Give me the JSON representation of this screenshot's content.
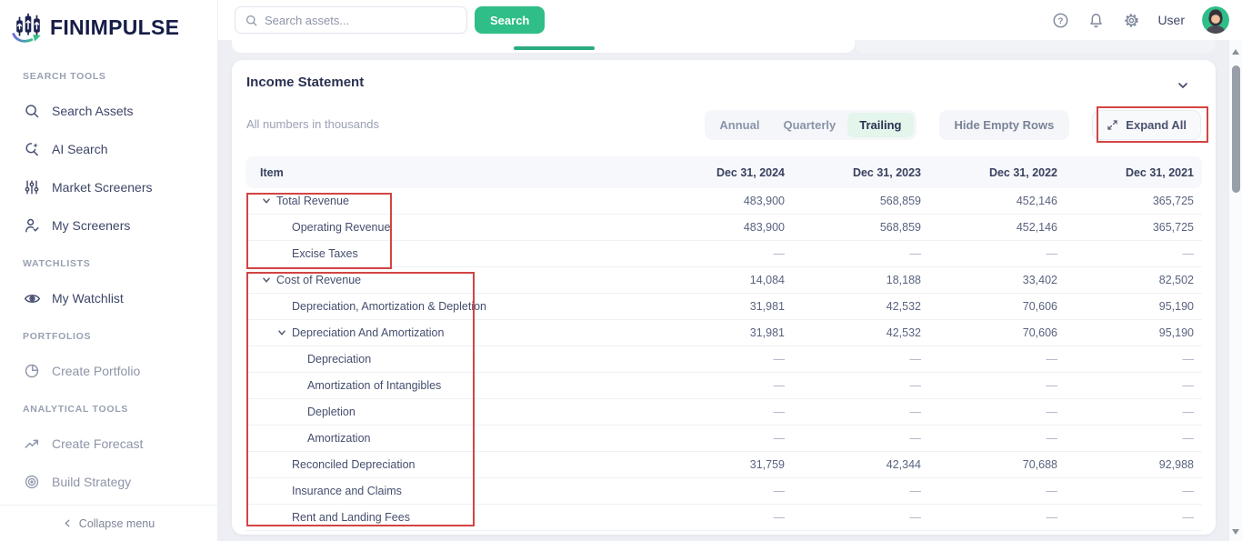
{
  "brand": {
    "name": "FINIMPULSE"
  },
  "colors": {
    "accent_green": "#2fbe87",
    "active_period_bg": "#e4f5ec",
    "tab_underline_green": "#2aab7e",
    "annotation_red": "#d24444",
    "navy": "#161d47"
  },
  "topbar": {
    "search_placeholder": "Search assets...",
    "search_button_label": "Search",
    "user_label": "User"
  },
  "sidebar": {
    "sections": [
      {
        "label": "SEARCH TOOLS",
        "items": [
          {
            "icon": "search",
            "label": "Search Assets",
            "muted": false
          },
          {
            "icon": "ai-search",
            "label": "AI Search",
            "muted": false
          },
          {
            "icon": "sliders",
            "label": "Market Screeners",
            "muted": false
          },
          {
            "icon": "person-check",
            "label": "My Screeners",
            "muted": false
          }
        ]
      },
      {
        "label": "WATCHLISTS",
        "items": [
          {
            "icon": "eye",
            "label": "My Watchlist",
            "muted": false
          }
        ]
      },
      {
        "label": "PORTFOLIOS",
        "items": [
          {
            "icon": "pie",
            "label": "Create Portfolio",
            "muted": true
          }
        ]
      },
      {
        "label": "ANALYTICAL TOOLS",
        "items": [
          {
            "icon": "trend",
            "label": "Create Forecast",
            "muted": true
          },
          {
            "icon": "target",
            "label": "Build Strategy",
            "muted": true
          }
        ]
      }
    ],
    "collapse_label": "Collapse menu"
  },
  "panel": {
    "title": "Income Statement",
    "subtitle": "All numbers in thousands",
    "period_options": [
      "Annual",
      "Quarterly",
      "Trailing"
    ],
    "active_period": "Trailing",
    "hide_empty_label": "Hide Empty Rows",
    "expand_all_label": "Expand All"
  },
  "table": {
    "columns": [
      "Item",
      "Dec 31, 2024",
      "Dec 31, 2023",
      "Dec 31, 2022",
      "Dec 31, 2021"
    ],
    "rows": [
      {
        "label": "Total Revenue",
        "level": 0,
        "expandable": true,
        "values": [
          "483,900",
          "568,859",
          "452,146",
          "365,725"
        ]
      },
      {
        "label": "Operating Revenue",
        "level": 1,
        "expandable": false,
        "values": [
          "483,900",
          "568,859",
          "452,146",
          "365,725"
        ]
      },
      {
        "label": "Excise Taxes",
        "level": 1,
        "expandable": false,
        "values": [
          "—",
          "—",
          "—",
          "—"
        ]
      },
      {
        "label": "Cost of Revenue",
        "level": 0,
        "expandable": true,
        "values": [
          "14,084",
          "18,188",
          "33,402",
          "82,502"
        ]
      },
      {
        "label": "Depreciation, Amortization & Depletion",
        "level": 1,
        "expandable": false,
        "values": [
          "31,981",
          "42,532",
          "70,606",
          "95,190"
        ]
      },
      {
        "label": "Depreciation And Amortization",
        "level": 1,
        "expandable": true,
        "values": [
          "31,981",
          "42,532",
          "70,606",
          "95,190"
        ]
      },
      {
        "label": "Depreciation",
        "level": 2,
        "expandable": false,
        "values": [
          "—",
          "—",
          "—",
          "—"
        ]
      },
      {
        "label": "Amortization of Intangibles",
        "level": 2,
        "expandable": false,
        "values": [
          "—",
          "—",
          "—",
          "—"
        ]
      },
      {
        "label": "Depletion",
        "level": 2,
        "expandable": false,
        "values": [
          "—",
          "—",
          "—",
          "—"
        ]
      },
      {
        "label": "Amortization",
        "level": 2,
        "expandable": false,
        "values": [
          "—",
          "—",
          "—",
          "—"
        ]
      },
      {
        "label": "Reconciled Depreciation",
        "level": 1,
        "expandable": false,
        "values": [
          "31,759",
          "42,344",
          "70,688",
          "92,988"
        ]
      },
      {
        "label": "Insurance and Claims",
        "level": 1,
        "expandable": false,
        "values": [
          "—",
          "—",
          "—",
          "—"
        ]
      },
      {
        "label": "Rent and Landing Fees",
        "level": 1,
        "expandable": false,
        "values": [
          "—",
          "—",
          "—",
          "—"
        ]
      }
    ]
  }
}
